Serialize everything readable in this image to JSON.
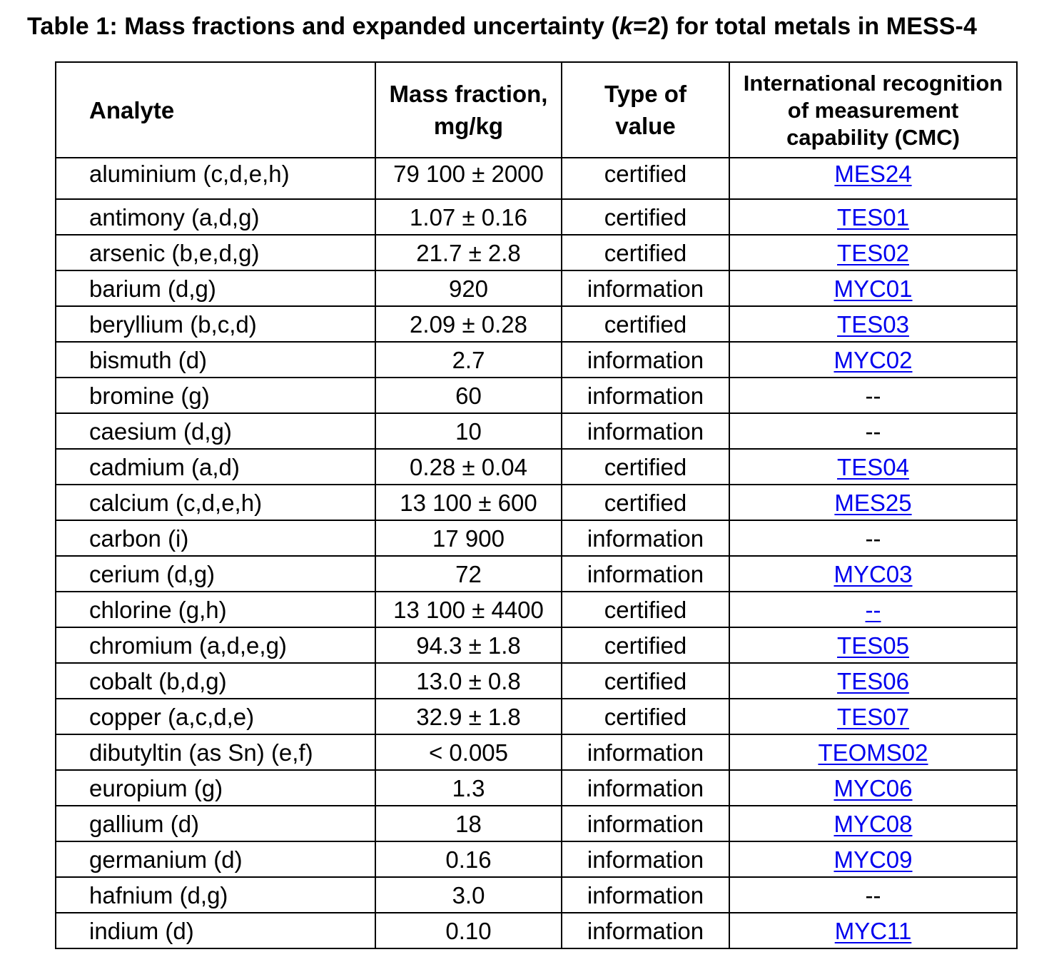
{
  "title": {
    "prefix": "Table 1: Mass fractions and expanded uncertainty (",
    "k": "k",
    "suffix": "=2) for total metals in MESS-4"
  },
  "headers": {
    "analyte": "Analyte",
    "mass_fraction": [
      "Mass fraction,",
      "mg/kg"
    ],
    "type": [
      "Type of",
      "value"
    ],
    "cmc": [
      "International recognition",
      "of measurement",
      "capability (CMC)"
    ]
  },
  "rows": [
    {
      "analyte": "aluminium (c,d,e,h)",
      "value": "79 100 ± 2000",
      "type": "certified",
      "cmc": "MES24",
      "link": true
    },
    {
      "analyte": "antimony (a,d,g)",
      "value": "1.07 ± 0.16",
      "type": "certified",
      "cmc": "TES01",
      "link": true
    },
    {
      "analyte": "arsenic (b,e,d,g)",
      "value": "21.7 ± 2.8",
      "type": "certified",
      "cmc": "TES02",
      "link": true
    },
    {
      "analyte": "barium (d,g)",
      "value": "920",
      "type": "information",
      "cmc": "MYC01",
      "link": true
    },
    {
      "analyte": "beryllium (b,c,d)",
      "value": "2.09 ± 0.28",
      "type": "certified",
      "cmc": "TES03",
      "link": true
    },
    {
      "analyte": "bismuth (d)",
      "value": "2.7",
      "type": "information",
      "cmc": "MYC02",
      "link": true
    },
    {
      "analyte": "bromine (g)",
      "value": "60",
      "type": "information",
      "cmc": "--",
      "link": false
    },
    {
      "analyte": "caesium (d,g)",
      "value": "10",
      "type": "information",
      "cmc": "--",
      "link": false
    },
    {
      "analyte": "cadmium (a,d)",
      "value": "0.28 ± 0.04",
      "type": "certified",
      "cmc": "TES04",
      "link": true
    },
    {
      "analyte": "calcium (c,d,e,h)",
      "value": "13 100 ± 600",
      "type": "certified",
      "cmc": "MES25",
      "link": true
    },
    {
      "analyte": "carbon (i)",
      "value": "17 900",
      "type": "information",
      "cmc": "--",
      "link": false
    },
    {
      "analyte": "cerium (d,g)",
      "value": "72",
      "type": "information",
      "cmc": "MYC03",
      "link": true
    },
    {
      "analyte": "chlorine (g,h)",
      "value": "13 100 ± 4400",
      "type": "certified",
      "cmc": "--",
      "link": true
    },
    {
      "analyte": "chromium (a,d,e,g)",
      "value": "94.3 ± 1.8",
      "type": "certified",
      "cmc": "TES05",
      "link": true
    },
    {
      "analyte": "cobalt (b,d,g)",
      "value": "13.0 ± 0.8",
      "type": "certified",
      "cmc": "TES06",
      "link": true
    },
    {
      "analyte": "copper (a,c,d,e)",
      "value": "32.9 ± 1.8",
      "type": "certified",
      "cmc": "TES07",
      "link": true
    },
    {
      "analyte": "dibutyltin (as Sn) (e,f)",
      "value": "< 0.005",
      "type": "information",
      "cmc": "TEOMS02",
      "link": true
    },
    {
      "analyte": "europium (g)",
      "value": "1.3",
      "type": "information",
      "cmc": "MYC06",
      "link": true
    },
    {
      "analyte": "gallium (d)",
      "value": "18",
      "type": "information",
      "cmc": "MYC08",
      "link": true
    },
    {
      "analyte": "germanium (d)",
      "value": "0.16",
      "type": "information",
      "cmc": "MYC09",
      "link": true
    },
    {
      "analyte": "hafnium (d,g)",
      "value": "3.0",
      "type": "information",
      "cmc": "--",
      "link": false
    },
    {
      "analyte": "indium (d)",
      "value": "0.10",
      "type": "information",
      "cmc": "MYC11",
      "link": true
    }
  ]
}
